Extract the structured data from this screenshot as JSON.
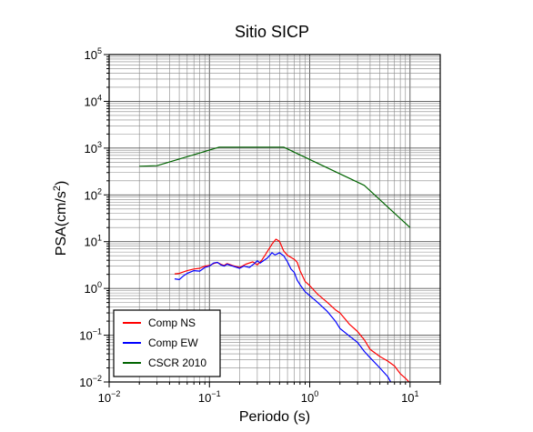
{
  "chart_data": {
    "type": "line",
    "title": "Sitio SICP",
    "xlabel": "Periodo (s)",
    "ylabel": "PSA(cm/s²)",
    "xscale": "log",
    "yscale": "log",
    "xlim": [
      0.01,
      20
    ],
    "ylim": [
      0.01,
      100000
    ],
    "grid": true,
    "legend_position": "bottom-left",
    "x_ticks": [
      {
        "base": "10",
        "exp": "−2",
        "value": 0.01
      },
      {
        "base": "10",
        "exp": "−1",
        "value": 0.1
      },
      {
        "base": "10",
        "exp": "0",
        "value": 1
      },
      {
        "base": "10",
        "exp": "1",
        "value": 10
      }
    ],
    "y_ticks": [
      {
        "base": "10",
        "exp": "−2",
        "value": 0.01
      },
      {
        "base": "10",
        "exp": "−1",
        "value": 0.1
      },
      {
        "base": "10",
        "exp": "0",
        "value": 1
      },
      {
        "base": "10",
        "exp": "1",
        "value": 10
      },
      {
        "base": "10",
        "exp": "2",
        "value": 100
      },
      {
        "base": "10",
        "exp": "3",
        "value": 1000
      },
      {
        "base": "10",
        "exp": "4",
        "value": 10000
      },
      {
        "base": "10",
        "exp": "5",
        "value": 100000
      }
    ],
    "series": [
      {
        "name": "Comp NS",
        "color": "#ff0000",
        "points": [
          [
            0.045,
            2.05
          ],
          [
            0.05,
            2.1
          ],
          [
            0.06,
            2.4
          ],
          [
            0.07,
            2.6
          ],
          [
            0.08,
            2.7
          ],
          [
            0.09,
            3.0
          ],
          [
            0.1,
            3.1
          ],
          [
            0.11,
            3.4
          ],
          [
            0.12,
            3.6
          ],
          [
            0.13,
            3.3
          ],
          [
            0.14,
            3.1
          ],
          [
            0.15,
            3.4
          ],
          [
            0.17,
            3.1
          ],
          [
            0.2,
            2.8
          ],
          [
            0.23,
            3.3
          ],
          [
            0.27,
            3.7
          ],
          [
            0.3,
            3.2
          ],
          [
            0.33,
            3.9
          ],
          [
            0.36,
            5.2
          ],
          [
            0.4,
            7.5
          ],
          [
            0.43,
            9.5
          ],
          [
            0.46,
            11.3
          ],
          [
            0.5,
            10.2
          ],
          [
            0.55,
            6.3
          ],
          [
            0.6,
            5.1
          ],
          [
            0.7,
            4.2
          ],
          [
            0.75,
            3.6
          ],
          [
            0.8,
            2.4
          ],
          [
            0.9,
            1.4
          ],
          [
            1.0,
            1.15
          ],
          [
            1.2,
            0.75
          ],
          [
            1.5,
            0.5
          ],
          [
            1.8,
            0.35
          ],
          [
            2.0,
            0.3
          ],
          [
            2.5,
            0.17
          ],
          [
            3.0,
            0.12
          ],
          [
            3.5,
            0.08
          ],
          [
            4.0,
            0.05
          ],
          [
            5.0,
            0.035
          ],
          [
            6.0,
            0.028
          ],
          [
            7.0,
            0.022
          ],
          [
            8.0,
            0.015
          ],
          [
            9.0,
            0.012
          ],
          [
            10.0,
            0.0095
          ]
        ]
      },
      {
        "name": "Comp EW",
        "color": "#0000ff",
        "points": [
          [
            0.045,
            1.6
          ],
          [
            0.05,
            1.55
          ],
          [
            0.055,
            1.85
          ],
          [
            0.06,
            2.1
          ],
          [
            0.07,
            2.4
          ],
          [
            0.08,
            2.35
          ],
          [
            0.09,
            2.8
          ],
          [
            0.1,
            3.0
          ],
          [
            0.11,
            3.5
          ],
          [
            0.12,
            3.6
          ],
          [
            0.13,
            3.2
          ],
          [
            0.14,
            3.0
          ],
          [
            0.15,
            3.3
          ],
          [
            0.17,
            3.0
          ],
          [
            0.2,
            2.7
          ],
          [
            0.22,
            3.0
          ],
          [
            0.25,
            2.8
          ],
          [
            0.28,
            3.4
          ],
          [
            0.3,
            3.9
          ],
          [
            0.32,
            3.5
          ],
          [
            0.35,
            4.0
          ],
          [
            0.38,
            4.5
          ],
          [
            0.42,
            5.8
          ],
          [
            0.45,
            5.2
          ],
          [
            0.5,
            5.8
          ],
          [
            0.55,
            5.0
          ],
          [
            0.6,
            3.7
          ],
          [
            0.65,
            2.6
          ],
          [
            0.7,
            2.2
          ],
          [
            0.75,
            1.5
          ],
          [
            0.8,
            1.2
          ],
          [
            0.9,
            0.85
          ],
          [
            1.0,
            0.7
          ],
          [
            1.2,
            0.5
          ],
          [
            1.5,
            0.32
          ],
          [
            1.8,
            0.2
          ],
          [
            2.0,
            0.14
          ],
          [
            2.5,
            0.095
          ],
          [
            3.0,
            0.07
          ],
          [
            3.5,
            0.045
          ],
          [
            4.0,
            0.033
          ],
          [
            5.0,
            0.02
          ],
          [
            6.0,
            0.013
          ],
          [
            6.5,
            0.0095
          ]
        ]
      },
      {
        "name": "CSCR 2010",
        "color": "#006400",
        "points": [
          [
            0.02,
            410
          ],
          [
            0.03,
            420
          ],
          [
            0.125,
            1050
          ],
          [
            0.55,
            1050
          ],
          [
            3.5,
            160
          ],
          [
            10.0,
            20
          ]
        ]
      }
    ]
  }
}
